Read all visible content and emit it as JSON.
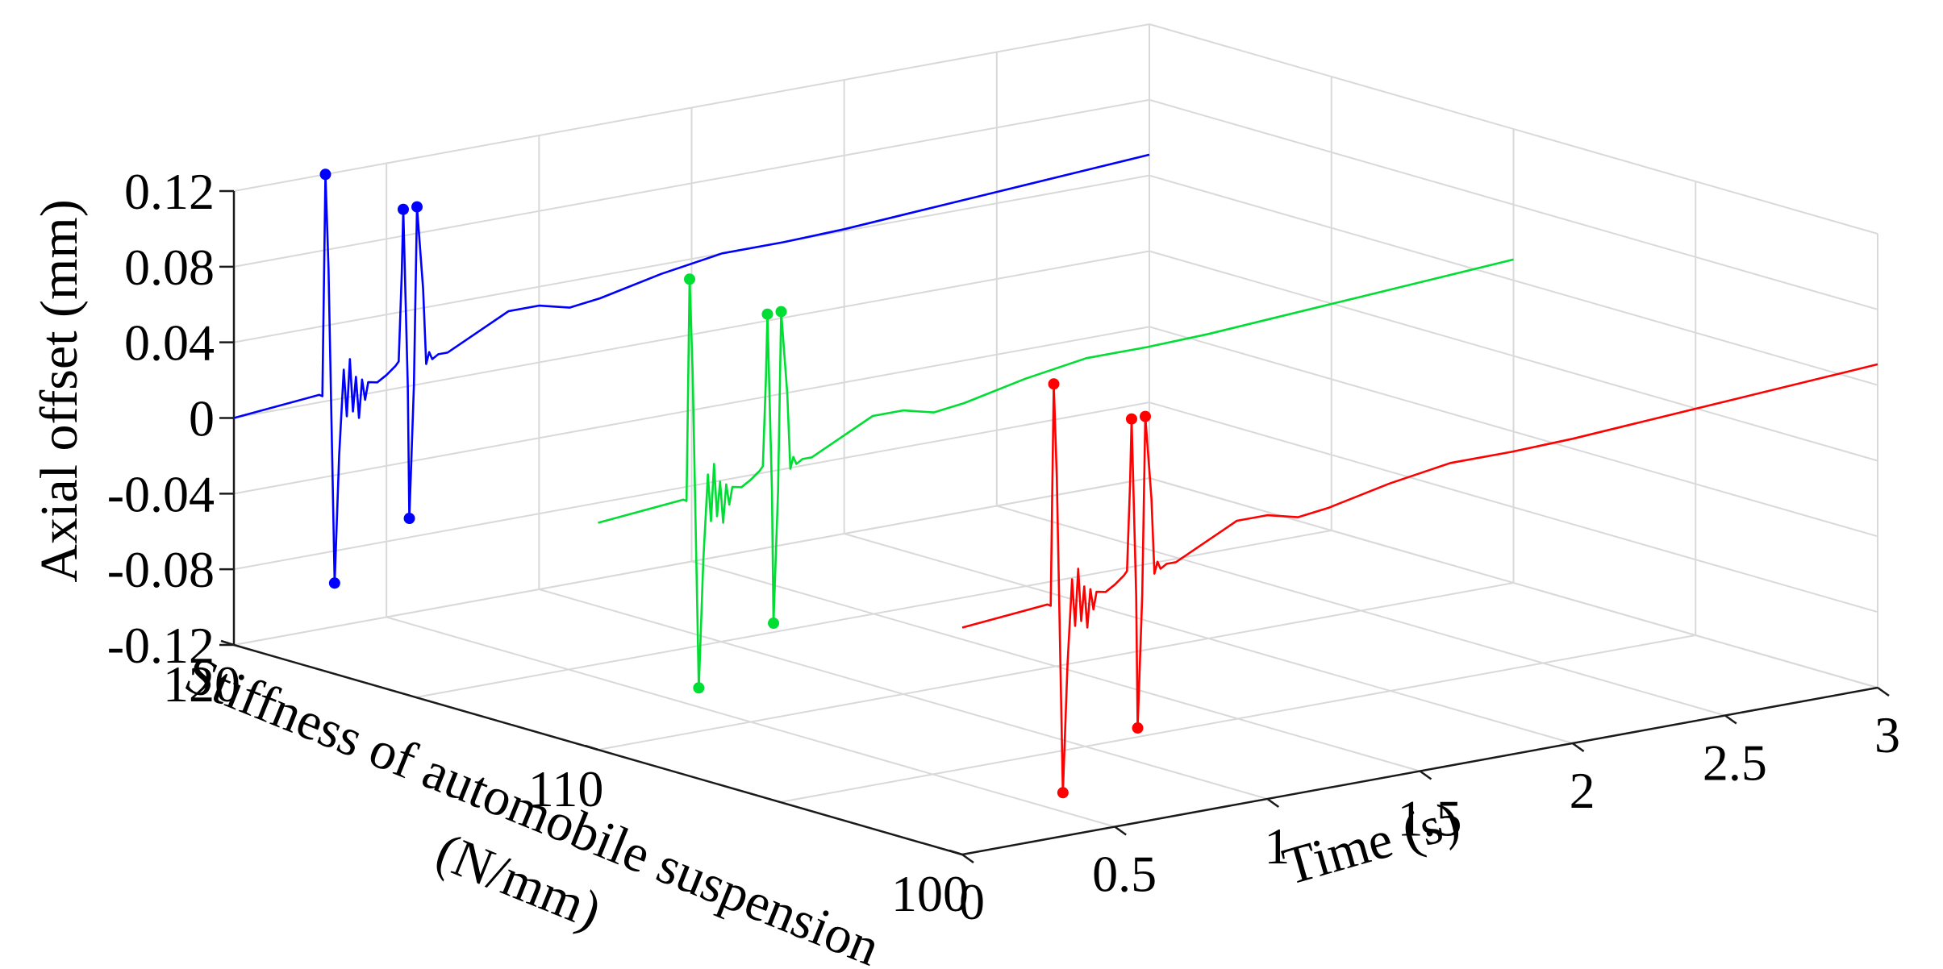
{
  "chart_data": {
    "type": "line",
    "projection": "3d",
    "title": "",
    "xlabel": "Time (s)",
    "ylabel": "Stiffness of automobile suspension (N/mm)",
    "ylabel_lines": [
      "Stiffness of automobile suspension",
      "(N/mm)"
    ],
    "zlabel": "Axial offset (mm)",
    "xlim": [
      0,
      3
    ],
    "ylim": [
      100,
      120
    ],
    "zlim": [
      -0.12,
      0.12
    ],
    "x_ticks": [
      0,
      0.5,
      1,
      1.5,
      2,
      2.5,
      3
    ],
    "x_tick_labels": [
      "0",
      "0.5",
      "1",
      "1.5",
      "2",
      "2.5",
      "3"
    ],
    "y_ticks": [
      120,
      110,
      100
    ],
    "y_tick_labels": [
      "120",
      "110",
      "100"
    ],
    "z_ticks": [
      0.12,
      0.08,
      0.04,
      0,
      -0.04,
      -0.08,
      -0.12
    ],
    "z_tick_labels": [
      "0.12",
      "0.08",
      "0.04",
      "0",
      "-0.04",
      "-0.08",
      "-0.12"
    ],
    "grid": true,
    "series": [
      {
        "name": "120 N/mm",
        "stiffness": 120,
        "color": "#0000ff",
        "points": [
          [
            0.0,
            0.0
          ],
          [
            0.28,
            0.004
          ],
          [
            0.29,
            0.003
          ],
          [
            0.3,
            0.12
          ],
          [
            0.31,
            0.07
          ],
          [
            0.33,
            -0.097
          ],
          [
            0.345,
            -0.03
          ],
          [
            0.36,
            0.015
          ],
          [
            0.37,
            -0.01
          ],
          [
            0.38,
            0.02
          ],
          [
            0.39,
            -0.008
          ],
          [
            0.4,
            0.01
          ],
          [
            0.41,
            -0.012
          ],
          [
            0.42,
            0.008
          ],
          [
            0.43,
            -0.003
          ],
          [
            0.44,
            0.006
          ],
          [
            0.47,
            0.005
          ],
          [
            0.5,
            0.008
          ],
          [
            0.53,
            0.012
          ],
          [
            0.54,
            0.014
          ],
          [
            0.55,
            0.06
          ],
          [
            0.555,
            0.094
          ],
          [
            0.57,
            0.0
          ],
          [
            0.575,
            -0.07
          ],
          [
            0.59,
            0.0
          ],
          [
            0.6,
            0.094
          ],
          [
            0.62,
            0.05
          ],
          [
            0.63,
            0.01
          ],
          [
            0.64,
            0.016
          ],
          [
            0.65,
            0.012
          ],
          [
            0.67,
            0.014
          ],
          [
            0.7,
            0.014
          ],
          [
            0.8,
            0.022
          ],
          [
            0.9,
            0.03
          ],
          [
            1.0,
            0.03
          ],
          [
            1.1,
            0.026
          ],
          [
            1.2,
            0.028
          ],
          [
            1.4,
            0.035
          ],
          [
            1.6,
            0.04
          ],
          [
            1.8,
            0.04
          ],
          [
            2.0,
            0.041
          ],
          [
            2.2,
            0.043
          ],
          [
            2.5,
            0.046
          ],
          [
            2.8,
            0.049
          ],
          [
            3.0,
            0.051
          ]
        ],
        "markers": [
          [
            0.3,
            0.12
          ],
          [
            0.33,
            -0.097
          ],
          [
            0.555,
            0.094
          ],
          [
            0.575,
            -0.07
          ],
          [
            0.6,
            0.094
          ]
        ]
      },
      {
        "name": "110 N/mm",
        "stiffness": 110,
        "color": "#00dd33",
        "points": [
          [
            0.0,
            0.0
          ],
          [
            0.28,
            0.004
          ],
          [
            0.29,
            0.003
          ],
          [
            0.3,
            0.12
          ],
          [
            0.31,
            0.07
          ],
          [
            0.33,
            -0.097
          ],
          [
            0.345,
            -0.03
          ],
          [
            0.36,
            0.015
          ],
          [
            0.37,
            -0.01
          ],
          [
            0.38,
            0.02
          ],
          [
            0.39,
            -0.008
          ],
          [
            0.4,
            0.01
          ],
          [
            0.41,
            -0.012
          ],
          [
            0.42,
            0.008
          ],
          [
            0.43,
            -0.003
          ],
          [
            0.44,
            0.006
          ],
          [
            0.47,
            0.005
          ],
          [
            0.5,
            0.008
          ],
          [
            0.53,
            0.012
          ],
          [
            0.54,
            0.014
          ],
          [
            0.55,
            0.06
          ],
          [
            0.555,
            0.094
          ],
          [
            0.57,
            0.0
          ],
          [
            0.575,
            -0.07
          ],
          [
            0.59,
            0.0
          ],
          [
            0.6,
            0.094
          ],
          [
            0.62,
            0.05
          ],
          [
            0.63,
            0.01
          ],
          [
            0.64,
            0.016
          ],
          [
            0.65,
            0.012
          ],
          [
            0.67,
            0.014
          ],
          [
            0.7,
            0.014
          ],
          [
            0.8,
            0.022
          ],
          [
            0.9,
            0.03
          ],
          [
            1.0,
            0.03
          ],
          [
            1.1,
            0.026
          ],
          [
            1.2,
            0.028
          ],
          [
            1.4,
            0.035
          ],
          [
            1.6,
            0.04
          ],
          [
            1.8,
            0.04
          ],
          [
            2.0,
            0.041
          ],
          [
            2.2,
            0.043
          ],
          [
            2.5,
            0.046
          ],
          [
            2.8,
            0.049
          ],
          [
            3.0,
            0.051
          ]
        ],
        "markers": [
          [
            0.3,
            0.12
          ],
          [
            0.33,
            -0.097
          ],
          [
            0.555,
            0.094
          ],
          [
            0.575,
            -0.07
          ],
          [
            0.6,
            0.094
          ]
        ]
      },
      {
        "name": "100 N/mm",
        "stiffness": 100,
        "color": "#ff0000",
        "points": [
          [
            0.0,
            0.0
          ],
          [
            0.28,
            0.004
          ],
          [
            0.29,
            0.003
          ],
          [
            0.3,
            0.12
          ],
          [
            0.31,
            0.07
          ],
          [
            0.33,
            -0.097
          ],
          [
            0.345,
            -0.03
          ],
          [
            0.36,
            0.015
          ],
          [
            0.37,
            -0.01
          ],
          [
            0.38,
            0.02
          ],
          [
            0.39,
            -0.008
          ],
          [
            0.4,
            0.01
          ],
          [
            0.41,
            -0.012
          ],
          [
            0.42,
            0.008
          ],
          [
            0.43,
            -0.003
          ],
          [
            0.44,
            0.006
          ],
          [
            0.47,
            0.005
          ],
          [
            0.5,
            0.008
          ],
          [
            0.53,
            0.012
          ],
          [
            0.54,
            0.014
          ],
          [
            0.55,
            0.06
          ],
          [
            0.555,
            0.094
          ],
          [
            0.57,
            0.0
          ],
          [
            0.575,
            -0.07
          ],
          [
            0.59,
            0.0
          ],
          [
            0.6,
            0.094
          ],
          [
            0.62,
            0.05
          ],
          [
            0.63,
            0.01
          ],
          [
            0.64,
            0.016
          ],
          [
            0.65,
            0.012
          ],
          [
            0.67,
            0.014
          ],
          [
            0.7,
            0.014
          ],
          [
            0.8,
            0.022
          ],
          [
            0.9,
            0.03
          ],
          [
            1.0,
            0.03
          ],
          [
            1.1,
            0.026
          ],
          [
            1.2,
            0.028
          ],
          [
            1.4,
            0.035
          ],
          [
            1.6,
            0.04
          ],
          [
            1.8,
            0.04
          ],
          [
            2.0,
            0.041
          ],
          [
            2.2,
            0.043
          ],
          [
            2.5,
            0.046
          ],
          [
            2.8,
            0.049
          ],
          [
            3.0,
            0.051
          ]
        ],
        "markers": [
          [
            0.3,
            0.12
          ],
          [
            0.33,
            -0.097
          ],
          [
            0.555,
            0.094
          ],
          [
            0.575,
            -0.07
          ],
          [
            0.6,
            0.094
          ]
        ]
      }
    ]
  }
}
